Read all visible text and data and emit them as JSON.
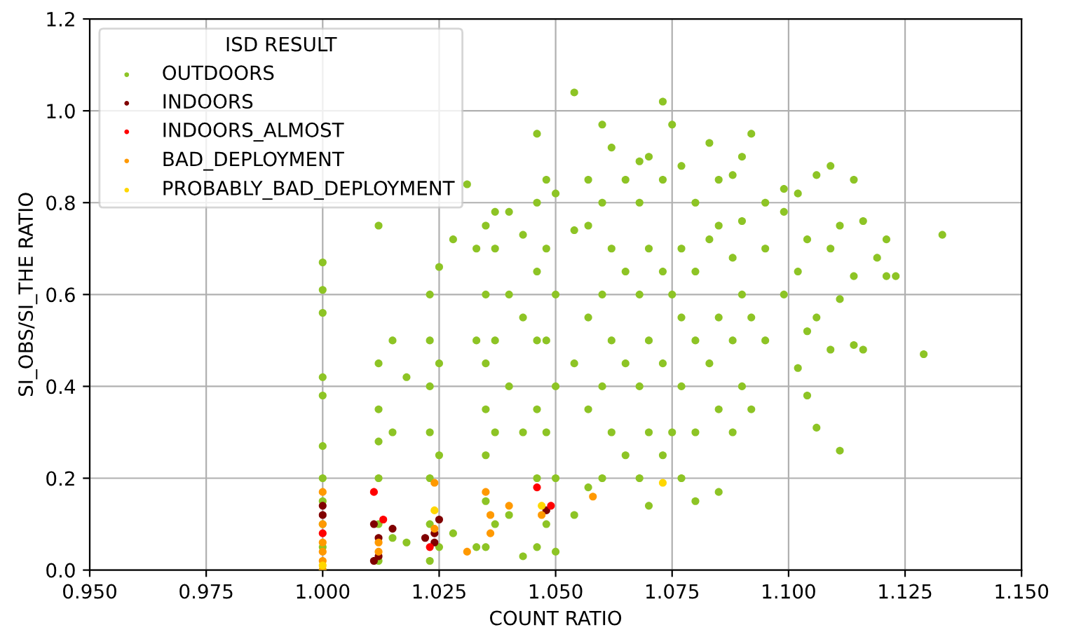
{
  "chart_data": {
    "type": "scatter",
    "xlabel": "COUNT RATIO",
    "ylabel": "SI_OBS/SI_THE RATIO",
    "legend_title": "ISD RESULT",
    "legend": "top left",
    "grid": true,
    "marker": "circle",
    "xlim": [
      0.95,
      1.15
    ],
    "xticks": [
      {
        "value": 0.95,
        "label": "0.950"
      },
      0.975,
      {
        "value": 1.0,
        "label": "1.000"
      },
      1.025,
      {
        "value": 1.05,
        "label": "1.050"
      },
      1.075,
      {
        "value": 1.1,
        "label": "1.100"
      },
      1.125,
      {
        "value": 1.15,
        "label": "1.150"
      }
    ],
    "ylim": [
      0.0,
      1.2
    ],
    "yticks": [
      {
        "value": 0.0,
        "label": "0.0"
      },
      0.2,
      0.4,
      0.6,
      0.8,
      {
        "value": 1.0,
        "label": "1.0"
      },
      1.2
    ],
    "series": [
      {
        "name": "OUTDOORS",
        "color": "#8dc425",
        "x": [
          1.0,
          1.0,
          1.0,
          1.0,
          1.0,
          1.0,
          1.0,
          1.0,
          1.0,
          1.0,
          1.0,
          1.012,
          1.012,
          1.012,
          1.012,
          1.012,
          1.012,
          1.012,
          1.015,
          1.015,
          1.015,
          1.018,
          1.018,
          1.023,
          1.023,
          1.023,
          1.023,
          1.023,
          1.023,
          1.023,
          1.025,
          1.025,
          1.025,
          1.025,
          1.031,
          1.028,
          1.028,
          1.033,
          1.033,
          1.033,
          1.035,
          1.035,
          1.035,
          1.035,
          1.035,
          1.035,
          1.035,
          1.037,
          1.037,
          1.037,
          1.037,
          1.037,
          1.04,
          1.04,
          1.04,
          1.04,
          1.043,
          1.043,
          1.043,
          1.043,
          1.046,
          1.046,
          1.046,
          1.046,
          1.046,
          1.046,
          1.046,
          1.048,
          1.048,
          1.048,
          1.048,
          1.048,
          1.05,
          1.05,
          1.05,
          1.05,
          1.05,
          1.054,
          1.054,
          1.054,
          1.054,
          1.057,
          1.057,
          1.057,
          1.057,
          1.057,
          1.06,
          1.06,
          1.06,
          1.06,
          1.06,
          1.062,
          1.062,
          1.062,
          1.062,
          1.065,
          1.065,
          1.065,
          1.065,
          1.068,
          1.068,
          1.068,
          1.068,
          1.068,
          1.07,
          1.07,
          1.07,
          1.07,
          1.07,
          1.073,
          1.073,
          1.073,
          1.073,
          1.073,
          1.075,
          1.075,
          1.075,
          1.077,
          1.077,
          1.077,
          1.077,
          1.077,
          1.08,
          1.08,
          1.08,
          1.08,
          1.08,
          1.083,
          1.083,
          1.083,
          1.085,
          1.085,
          1.085,
          1.085,
          1.085,
          1.088,
          1.088,
          1.088,
          1.088,
          1.09,
          1.09,
          1.09,
          1.09,
          1.092,
          1.092,
          1.092,
          1.095,
          1.095,
          1.095,
          1.099,
          1.099,
          1.099,
          1.102,
          1.102,
          1.102,
          1.104,
          1.104,
          1.104,
          1.106,
          1.106,
          1.106,
          1.109,
          1.109,
          1.109,
          1.111,
          1.111,
          1.111,
          1.114,
          1.114,
          1.114,
          1.116,
          1.116,
          1.119,
          1.121,
          1.121,
          1.123,
          1.129,
          1.133
        ],
        "values": [
          0.0,
          0.05,
          0.1,
          0.15,
          0.2,
          0.27,
          0.38,
          0.42,
          0.56,
          0.61,
          0.67,
          0.02,
          0.1,
          0.2,
          0.28,
          0.35,
          0.45,
          0.75,
          0.07,
          0.3,
          0.5,
          0.42,
          0.06,
          0.02,
          0.1,
          0.2,
          0.3,
          0.4,
          0.5,
          0.6,
          0.05,
          0.25,
          0.45,
          0.66,
          0.84,
          0.72,
          0.08,
          0.7,
          0.5,
          0.05,
          0.05,
          0.15,
          0.25,
          0.35,
          0.45,
          0.6,
          0.75,
          0.1,
          0.3,
          0.5,
          0.7,
          0.78,
          0.12,
          0.4,
          0.6,
          0.78,
          0.03,
          0.3,
          0.55,
          0.73,
          0.05,
          0.2,
          0.35,
          0.5,
          0.65,
          0.8,
          0.95,
          0.1,
          0.3,
          0.5,
          0.7,
          0.85,
          0.04,
          0.2,
          0.4,
          0.6,
          0.82,
          1.04,
          0.12,
          0.45,
          0.74,
          0.18,
          0.35,
          0.55,
          0.75,
          0.85,
          0.2,
          0.4,
          0.6,
          0.8,
          0.97,
          0.3,
          0.5,
          0.7,
          0.92,
          0.25,
          0.45,
          0.65,
          0.85,
          0.2,
          0.4,
          0.6,
          0.8,
          0.89,
          0.14,
          0.3,
          0.5,
          0.7,
          0.9,
          0.25,
          0.45,
          0.65,
          0.85,
          1.02,
          0.97,
          0.6,
          0.3,
          0.2,
          0.4,
          0.55,
          0.7,
          0.88,
          0.15,
          0.3,
          0.5,
          0.65,
          0.8,
          0.45,
          0.72,
          0.93,
          0.17,
          0.35,
          0.55,
          0.75,
          0.85,
          0.3,
          0.5,
          0.68,
          0.86,
          0.4,
          0.6,
          0.76,
          0.9,
          0.95,
          0.55,
          0.35,
          0.7,
          0.5,
          0.8,
          0.6,
          0.78,
          0.83,
          0.44,
          0.65,
          0.82,
          0.38,
          0.52,
          0.72,
          0.31,
          0.55,
          0.86,
          0.88,
          0.7,
          0.48,
          0.26,
          0.59,
          0.75,
          0.85,
          0.49,
          0.64,
          0.48,
          0.76,
          0.68,
          0.72,
          0.64,
          0.64,
          0.47,
          0.73
        ]
      },
      {
        "name": "INDOORS",
        "color": "#800000",
        "x": [
          1.0,
          1.0,
          1.011,
          1.011,
          1.012,
          1.012,
          1.015,
          1.022,
          1.024,
          1.024,
          1.025,
          1.048
        ],
        "values": [
          0.14,
          0.12,
          0.02,
          0.1,
          0.03,
          0.07,
          0.09,
          0.07,
          0.06,
          0.08,
          0.11,
          0.13
        ]
      },
      {
        "name": "INDOORS_ALMOST",
        "color": "#ff0000",
        "x": [
          1.0,
          1.011,
          1.013,
          1.023,
          1.046,
          1.049
        ],
        "values": [
          0.08,
          0.17,
          0.11,
          0.05,
          0.18,
          0.14
        ]
      },
      {
        "name": "BAD_DEPLOYMENT",
        "color": "#ff9900",
        "x": [
          1.0,
          1.0,
          1.0,
          1.0,
          1.0,
          1.0,
          1.012,
          1.012,
          1.024,
          1.024,
          1.031,
          1.035,
          1.036,
          1.036,
          1.04,
          1.047,
          1.058
        ],
        "values": [
          0.0,
          0.02,
          0.04,
          0.06,
          0.1,
          0.17,
          0.06,
          0.04,
          0.19,
          0.09,
          0.04,
          0.17,
          0.12,
          0.08,
          0.14,
          0.12,
          0.16
        ]
      },
      {
        "name": "PROBABLY_BAD_DEPLOYMENT",
        "color": "#ffd700",
        "x": [
          1.024,
          1.0,
          1.047,
          1.073
        ],
        "values": [
          0.13,
          0.01,
          0.14,
          0.19
        ]
      }
    ]
  }
}
